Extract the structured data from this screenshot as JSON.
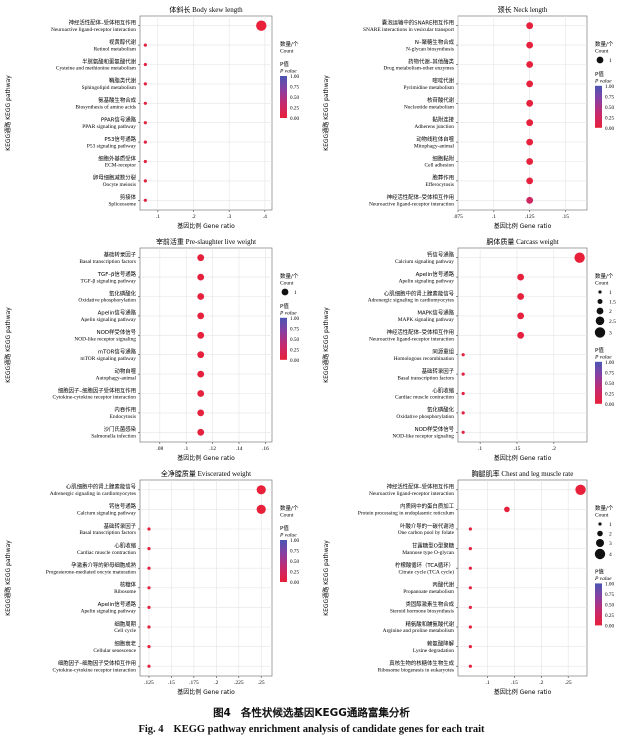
{
  "figure": {
    "label": "图4",
    "title_zh": "各性状候选基因KEGG通路富集分析",
    "label_en": "Fig. 4",
    "title_en": "KEGG pathway enrichment analysis of candidate genes for each trait"
  },
  "colors": {
    "pvalue_gradient": [
      "#e8203a",
      "#c62a6e",
      "#8a3fa1",
      "#4a56b3"
    ]
  },
  "chart_data": [
    {
      "type": "scatter",
      "title": "体斜长 Body skew length",
      "xlabel": "基因比例 Gene ratio",
      "ylabel": "KEGG通路 KEGG pathway",
      "xlim": [
        0.05,
        0.42
      ],
      "xticks": [
        0.1,
        0.2,
        0.3,
        0.4
      ],
      "grid": true,
      "legend_position": "right",
      "count_legend": {
        "title": "数量/个 Count",
        "values": []
      },
      "pvalue_legend": {
        "title": "P值 P value",
        "ticks": [
          "1.00",
          "0.75",
          "0.50",
          "0.25",
          "0.00"
        ]
      },
      "pathways": [
        {
          "zh": "神经活性配体–受体相互作用",
          "en": "Neuroactive ligand-receptor interaction",
          "ratio": 0.39,
          "count": 6,
          "p": 0.0
        },
        {
          "zh": "视黄醇代谢",
          "en": "Retinol metabolism",
          "ratio": 0.065,
          "count": 1,
          "p": 0.05
        },
        {
          "zh": "半胱氨酸和蛋氨酸代谢",
          "en": "Cysteine and methionine metabolism",
          "ratio": 0.065,
          "count": 1,
          "p": 0.05
        },
        {
          "zh": "鞘脂类代谢",
          "en": "Sphingolipid metabolism",
          "ratio": 0.065,
          "count": 1,
          "p": 0.05
        },
        {
          "zh": "氨基酸生物合成",
          "en": "Biosynthesis of amino acids",
          "ratio": 0.065,
          "count": 1,
          "p": 0.05
        },
        {
          "zh": "PPAR信号通路",
          "en": "PPAR signaling pathway",
          "ratio": 0.065,
          "count": 1,
          "p": 0.05
        },
        {
          "zh": "P53信号通路",
          "en": "P53 signaling pathway",
          "ratio": 0.065,
          "count": 1,
          "p": 0.05
        },
        {
          "zh": "细胞外基质受体",
          "en": "ECM-receptor",
          "ratio": 0.065,
          "count": 1,
          "p": 0.05
        },
        {
          "zh": "卵母细胞减数分裂",
          "en": "Oocyte meiosis",
          "ratio": 0.065,
          "count": 1,
          "p": 0.05
        },
        {
          "zh": "剪接体",
          "en": "Spliceosome",
          "ratio": 0.065,
          "count": 1,
          "p": 0.05
        }
      ]
    },
    {
      "type": "scatter",
      "title": "颈长 Neck length",
      "xlabel": "基因比例 Gene ratio",
      "ylabel": "KEGG通路 KEGG pathway",
      "xlim": [
        0.075,
        0.165
      ],
      "xticks": [
        0.075,
        0.1,
        0.125,
        0.15
      ],
      "grid": true,
      "legend_position": "right",
      "count_legend": {
        "title": "数量/个 Count",
        "values": [
          1
        ]
      },
      "pvalue_legend": {
        "title": "P值 P value",
        "ticks": [
          "1.00",
          "0.75",
          "0.50",
          "0.25",
          "0.00"
        ]
      },
      "pathways": [
        {
          "zh": "囊泡运输中的SNARE相互作用",
          "en": "SNARE interactions in vesicular transport",
          "ratio": 0.125,
          "count": 1,
          "p": 0.02
        },
        {
          "zh": "N–聚糖生物合成",
          "en": "N-glycan biosynthesis",
          "ratio": 0.125,
          "count": 1,
          "p": 0.02
        },
        {
          "zh": "药物代谢–其他酶类",
          "en": "Drug metabolism-other enzymes",
          "ratio": 0.125,
          "count": 1,
          "p": 0.02
        },
        {
          "zh": "嘧啶代谢",
          "en": "Pyrimidine metabolism",
          "ratio": 0.125,
          "count": 1,
          "p": 0.02
        },
        {
          "zh": "核苷酸代谢",
          "en": "Nucleotide metabolism",
          "ratio": 0.125,
          "count": 1,
          "p": 0.02
        },
        {
          "zh": "黏附连接",
          "en": "Adherens junction",
          "ratio": 0.125,
          "count": 1,
          "p": 0.02
        },
        {
          "zh": "动物线粒体自噬",
          "en": "Mitophagy-animal",
          "ratio": 0.125,
          "count": 1,
          "p": 0.02
        },
        {
          "zh": "细胞黏附",
          "en": "Cell adhesion",
          "ratio": 0.125,
          "count": 1,
          "p": 0.02
        },
        {
          "zh": "胞葬作用",
          "en": "Efferocytosis",
          "ratio": 0.125,
          "count": 1,
          "p": 0.02
        },
        {
          "zh": "神经活性配体–受体相互作用",
          "en": "Neuroactive ligand-receptor interaction",
          "ratio": 0.125,
          "count": 1,
          "p": 0.25
        }
      ]
    },
    {
      "type": "scatter",
      "title": "宰前活重 Pre-slaughter live weight",
      "xlabel": "基因比例 Gene ratio",
      "ylabel": "KEGG通路 KEGG pathway",
      "xlim": [
        0.065,
        0.165
      ],
      "xticks": [
        0.08,
        0.1,
        0.12,
        0.14,
        0.16
      ],
      "grid": true,
      "legend_position": "right",
      "count_legend": {
        "title": "数量/个 Count",
        "values": [
          1
        ]
      },
      "pvalue_legend": {
        "title": "P值 P value",
        "ticks": [
          "1.00",
          "0.75",
          "0.50",
          "0.25",
          "0.00"
        ]
      },
      "pathways": [
        {
          "zh": "基础转录因子",
          "en": "Basal transcription factors",
          "ratio": 0.111,
          "count": 1,
          "p": 0.02
        },
        {
          "zh": "TGF–β信号通路",
          "en": "TGF-β signaling pathway",
          "ratio": 0.111,
          "count": 1,
          "p": 0.02
        },
        {
          "zh": "氧化磷酸化",
          "en": "Oxidative phosphorylation",
          "ratio": 0.111,
          "count": 1,
          "p": 0.02
        },
        {
          "zh": "Apelin信号通路",
          "en": "Apelin signaling pathway",
          "ratio": 0.111,
          "count": 1,
          "p": 0.02
        },
        {
          "zh": "NOD样受体信号",
          "en": "NOD-like receptor signaling",
          "ratio": 0.111,
          "count": 1,
          "p": 0.02
        },
        {
          "zh": "mTOR信号通路",
          "en": "mTOR signaling pathway",
          "ratio": 0.111,
          "count": 1,
          "p": 0.02
        },
        {
          "zh": "动物自噬",
          "en": "Autophagy-animal",
          "ratio": 0.111,
          "count": 1,
          "p": 0.02
        },
        {
          "zh": "细胞因子–细胞因子受体相互作用",
          "en": "Cytokine-cytokine receptor interaction",
          "ratio": 0.111,
          "count": 1,
          "p": 0.02
        },
        {
          "zh": "内吞作用",
          "en": "Endocytosis",
          "ratio": 0.111,
          "count": 1,
          "p": 0.02
        },
        {
          "zh": "沙门氏菌感染",
          "en": "Salmonella infection",
          "ratio": 0.111,
          "count": 1,
          "p": 0.02
        }
      ]
    },
    {
      "type": "scatter",
      "title": "胴体质量 Carcass weight",
      "xlabel": "基因比例 Gene ratio",
      "ylabel": "KEGG通路 KEGG pathway",
      "xlim": [
        0.07,
        0.245
      ],
      "xticks": [
        0.1,
        0.15,
        0.2
      ],
      "grid": true,
      "legend_position": "right",
      "count_legend": {
        "title": "数量/个 Count",
        "values": [
          1.0,
          1.5,
          2.0,
          2.5,
          3.0
        ]
      },
      "pvalue_legend": {
        "title": "P值 P value",
        "ticks": [
          "1.00",
          "0.75",
          "0.50",
          "0.25",
          "0.00"
        ]
      },
      "pathways": [
        {
          "zh": "钙信号通路",
          "en": "Calcium signaling pathway",
          "ratio": 0.235,
          "count": 3,
          "p": 0.0
        },
        {
          "zh": "Apelin信号通路",
          "en": "Apelin signaling pathway",
          "ratio": 0.155,
          "count": 2,
          "p": 0.01
        },
        {
          "zh": "心肌细胞中的肾上腺素能信号",
          "en": "Adrenergic signaling in cardiomyocytes",
          "ratio": 0.155,
          "count": 2,
          "p": 0.01
        },
        {
          "zh": "MAPK信号通路",
          "en": "MAPK signaling pathway",
          "ratio": 0.155,
          "count": 2,
          "p": 0.02
        },
        {
          "zh": "神经活性配体–受体相互作用",
          "en": "Neuroactive ligand-receptor interaction",
          "ratio": 0.155,
          "count": 2,
          "p": 0.03
        },
        {
          "zh": "同源重组",
          "en": "Homologous recombination",
          "ratio": 0.077,
          "count": 1,
          "p": 0.05
        },
        {
          "zh": "基础转录因子",
          "en": "Basal transcription factors",
          "ratio": 0.077,
          "count": 1,
          "p": 0.05
        },
        {
          "zh": "心肌收缩",
          "en": "Cardiac muscle contraction",
          "ratio": 0.077,
          "count": 1,
          "p": 0.05
        },
        {
          "zh": "氧化磷酸化",
          "en": "Oxidative phosphorylation",
          "ratio": 0.077,
          "count": 1,
          "p": 0.05
        },
        {
          "zh": "NOD样受体信号",
          "en": "NOD-like receptor signaling",
          "ratio": 0.077,
          "count": 1,
          "p": 0.05
        }
      ]
    },
    {
      "type": "scatter",
      "title": "全净膛质量 Eviscerated weight",
      "xlabel": "基因比例 Gene ratio",
      "ylabel": "KEGG通路 KEGG pathway",
      "xlim": [
        0.115,
        0.262
      ],
      "xticks": [
        0.125,
        0.15,
        0.175,
        0.2,
        0.225,
        0.25
      ],
      "grid": true,
      "legend_position": "right",
      "count_legend": {
        "title": "数量/个 Count",
        "values": []
      },
      "pvalue_legend": {
        "title": "P值 P value",
        "ticks": [
          "1.00",
          "0.75",
          "0.50",
          "0.25",
          "0.00"
        ]
      },
      "pathways": [
        {
          "zh": "心肌细胞中的肾上腺素能信号",
          "en": "Adrenergic signaling in cardiomyocytes",
          "ratio": 0.25,
          "count": 2,
          "p": 0.0
        },
        {
          "zh": "钙信号通路",
          "en": "Calcium signaling pathway",
          "ratio": 0.25,
          "count": 2,
          "p": 0.0
        },
        {
          "zh": "基础转录因子",
          "en": "Basal transcription factors",
          "ratio": 0.125,
          "count": 1,
          "p": 0.03
        },
        {
          "zh": "心肌收缩",
          "en": "Cardiac muscle contraction",
          "ratio": 0.125,
          "count": 1,
          "p": 0.03
        },
        {
          "zh": "孕激素介导的卵母细胞成熟",
          "en": "Progesterone-mediated oocyte maturation",
          "ratio": 0.125,
          "count": 1,
          "p": 0.03
        },
        {
          "zh": "核糖体",
          "en": "Ribosome",
          "ratio": 0.125,
          "count": 1,
          "p": 0.03
        },
        {
          "zh": "Apelin信号通路",
          "en": "Apelin signaling pathway",
          "ratio": 0.125,
          "count": 1,
          "p": 0.03
        },
        {
          "zh": "细胞周期",
          "en": "Cell cycle",
          "ratio": 0.125,
          "count": 1,
          "p": 0.03
        },
        {
          "zh": "细胞衰老",
          "en": "Cellular senescence",
          "ratio": 0.125,
          "count": 1,
          "p": 0.03
        },
        {
          "zh": "细胞因子–细胞因子受体相互作用",
          "en": "Cytokine-cytokine receptor interaction",
          "ratio": 0.125,
          "count": 1,
          "p": 0.03
        }
      ]
    },
    {
      "type": "scatter",
      "title": "胸腿肌率 Chest and leg muscle rate",
      "xlabel": "基因比例 Gene ratio",
      "ylabel": "KEGG通路 KEGG pathway",
      "xlim": [
        0.045,
        0.285
      ],
      "xticks": [
        0.1,
        0.15,
        0.2,
        0.25
      ],
      "grid": true,
      "legend_position": "right",
      "count_legend": {
        "title": "数量/个 Count",
        "values": [
          1,
          2,
          3,
          4
        ]
      },
      "pvalue_legend": {
        "title": "P值 P value",
        "ticks": [
          "1.00",
          "0.75",
          "0.50",
          "0.25",
          "0.00"
        ]
      },
      "pathways": [
        {
          "zh": "神经活性配体–受体相互作用",
          "en": "Neuroactive ligand-receptor interaction",
          "ratio": 0.273,
          "count": 4,
          "p": 0.0
        },
        {
          "zh": "内质网中的蛋白质加工",
          "en": "Protein processing in endoplasmic reticulum",
          "ratio": 0.136,
          "count": 2,
          "p": 0.01
        },
        {
          "zh": "叶酸介导的一碳代谢池",
          "en": "One carbon pool by folate",
          "ratio": 0.068,
          "count": 1,
          "p": 0.04
        },
        {
          "zh": "甘露糖型O型聚糖",
          "en": "Mannose type O-glycan",
          "ratio": 0.068,
          "count": 1,
          "p": 0.04
        },
        {
          "zh": "柠檬酸循环（TCA循环）",
          "en": "Citrate cycle (TCA cycle)",
          "ratio": 0.068,
          "count": 1,
          "p": 0.04
        },
        {
          "zh": "丙酸代谢",
          "en": "Propanoate metabolism",
          "ratio": 0.068,
          "count": 1,
          "p": 0.04
        },
        {
          "zh": "类固醇激素生物合成",
          "en": "Steroid hormone biosynthesis",
          "ratio": 0.068,
          "count": 1,
          "p": 0.04
        },
        {
          "zh": "精氨酸和脯氨酸代谢",
          "en": "Arginine and proline metabolism",
          "ratio": 0.068,
          "count": 1,
          "p": 0.04
        },
        {
          "zh": "赖氨酸降解",
          "en": "Lysine degradation",
          "ratio": 0.068,
          "count": 1,
          "p": 0.04
        },
        {
          "zh": "真核生物的核糖体生物生成",
          "en": "Ribosome biogenesis in eukaryotes",
          "ratio": 0.068,
          "count": 1,
          "p": 0.04
        }
      ]
    }
  ]
}
